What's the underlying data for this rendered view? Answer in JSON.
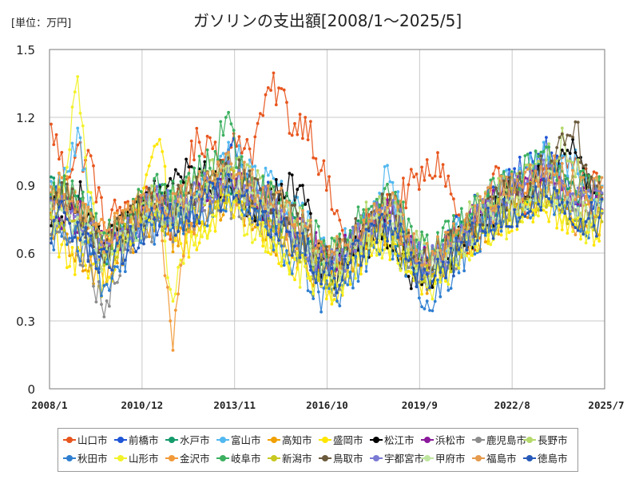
{
  "chart_data": {
    "type": "line",
    "title": "ガソリンの支出額[2008/1～2025/5]",
    "unit_label": "[単位：万円]",
    "xlabel": "",
    "ylabel": "",
    "ylim": [
      0,
      1.5
    ],
    "y_ticks": [
      "0",
      "0.3",
      "0.6",
      "0.9",
      "1.2",
      "1.5"
    ],
    "x_ticks": [
      "2008/1",
      "2010/12",
      "2013/11",
      "2016/10",
      "2019/9",
      "2022/8",
      "2025/7"
    ],
    "grid": true,
    "legend_position": "bottom",
    "series": [
      {
        "name": "山口市",
        "color": "#e8561e",
        "anchors": [
          1.17,
          0.95,
          1.05,
          1.0,
          0.7,
          0.8,
          0.75,
          0.88,
          0.8,
          0.72,
          0.95,
          1.1,
          1.1,
          0.98,
          1.12,
          1.05,
          1.3,
          1.33,
          1.15,
          1.2,
          1.0,
          0.8,
          0.65,
          0.6,
          0.75,
          0.8,
          0.85,
          0.9,
          0.95,
          1.0,
          0.82,
          0.6,
          0.65,
          0.9,
          0.92,
          0.85,
          0.82,
          0.95,
          0.98,
          1.0,
          0.92,
          0.9
        ]
      },
      {
        "name": "前橋市",
        "color": "#1f55d6",
        "anchors": [
          0.8,
          0.85,
          0.7,
          0.6,
          0.62,
          0.7,
          0.75,
          0.8,
          0.85,
          0.78,
          0.8,
          0.82,
          0.88,
          1.0,
          1.05,
          0.95,
          0.85,
          0.8,
          0.7,
          0.6,
          0.55,
          0.5,
          0.6,
          0.7,
          0.78,
          0.8,
          0.72,
          0.6,
          0.55,
          0.62,
          0.7,
          0.75,
          0.8,
          0.85,
          0.9,
          0.95,
          1.0,
          1.05,
          0.9,
          0.8,
          0.85,
          0.82
        ]
      },
      {
        "name": "水戸市",
        "color": "#159b6b",
        "anchors": [
          0.88,
          0.92,
          0.8,
          0.7,
          0.6,
          0.65,
          0.72,
          0.78,
          0.82,
          0.8,
          0.76,
          0.85,
          0.9,
          0.95,
          0.92,
          0.85,
          0.8,
          0.78,
          0.72,
          0.65,
          0.58,
          0.55,
          0.6,
          0.68,
          0.72,
          0.75,
          0.7,
          0.62,
          0.55,
          0.58,
          0.64,
          0.7,
          0.76,
          0.8,
          0.85,
          0.88,
          0.92,
          0.95,
          0.9,
          0.85,
          0.88,
          0.9
        ]
      },
      {
        "name": "富山市",
        "color": "#52b8f0",
        "anchors": [
          0.85,
          0.95,
          1.1,
          0.8,
          0.6,
          0.68,
          0.74,
          0.8,
          0.84,
          0.78,
          0.82,
          0.86,
          0.95,
          1.05,
          1.0,
          0.92,
          0.95,
          0.9,
          0.8,
          0.72,
          0.62,
          0.58,
          0.64,
          0.72,
          0.85,
          0.92,
          0.8,
          0.65,
          0.56,
          0.6,
          0.68,
          0.74,
          0.8,
          0.86,
          0.9,
          0.95,
          1.0,
          1.02,
          0.98,
          1.05,
          0.9,
          0.88
        ]
      },
      {
        "name": "高知市",
        "color": "#f0a000",
        "anchors": [
          0.7,
          0.65,
          0.6,
          0.55,
          0.5,
          0.6,
          0.66,
          0.72,
          0.7,
          0.68,
          0.72,
          0.75,
          0.78,
          0.82,
          0.8,
          0.76,
          0.7,
          0.66,
          0.6,
          0.55,
          0.5,
          0.48,
          0.52,
          0.6,
          0.66,
          0.68,
          0.64,
          0.55,
          0.5,
          0.54,
          0.6,
          0.66,
          0.7,
          0.74,
          0.78,
          0.8,
          0.84,
          0.86,
          0.8,
          0.75,
          0.72,
          0.74
        ]
      },
      {
        "name": "盛岡市",
        "color": "#ffe600",
        "anchors": [
          0.75,
          0.6,
          0.55,
          0.5,
          0.48,
          0.6,
          0.7,
          0.9,
          1.1,
          0.7,
          0.6,
          0.66,
          0.72,
          0.78,
          0.8,
          0.74,
          0.68,
          0.62,
          0.56,
          0.5,
          0.46,
          0.44,
          0.5,
          0.58,
          0.64,
          0.66,
          0.6,
          0.52,
          0.48,
          0.52,
          0.58,
          0.64,
          0.68,
          0.72,
          0.76,
          0.78,
          0.8,
          0.82,
          0.76,
          0.72,
          0.7,
          0.72
        ]
      },
      {
        "name": "松江市",
        "color": "#000000",
        "anchors": [
          0.78,
          0.8,
          0.86,
          0.75,
          0.62,
          0.68,
          0.74,
          0.8,
          0.86,
          0.9,
          0.94,
          0.96,
          0.92,
          0.88,
          0.84,
          0.8,
          0.82,
          0.86,
          0.88,
          0.8,
          0.55,
          0.5,
          0.55,
          0.62,
          0.66,
          0.7,
          0.6,
          0.5,
          0.5,
          0.56,
          0.62,
          0.68,
          0.74,
          0.8,
          0.86,
          0.88,
          0.9,
          0.95,
          1.0,
          1.05,
          0.88,
          0.85
        ]
      },
      {
        "name": "浜松市",
        "color": "#8a1a9b",
        "anchors": [
          0.8,
          0.78,
          0.76,
          0.7,
          0.62,
          0.68,
          0.74,
          0.78,
          0.8,
          0.78,
          0.82,
          0.86,
          0.88,
          0.9,
          0.88,
          0.84,
          0.8,
          0.76,
          0.72,
          0.66,
          0.6,
          0.56,
          0.62,
          0.7,
          0.76,
          0.8,
          0.74,
          0.62,
          0.56,
          0.6,
          0.66,
          0.72,
          0.78,
          0.82,
          0.86,
          0.88,
          0.9,
          0.92,
          0.88,
          0.84,
          0.82,
          0.84
        ]
      },
      {
        "name": "鹿児島市",
        "color": "#8c8c8c",
        "anchors": [
          0.72,
          0.7,
          0.65,
          0.5,
          0.38,
          0.55,
          0.64,
          0.7,
          0.74,
          0.72,
          0.74,
          0.78,
          0.8,
          0.84,
          0.82,
          0.78,
          0.74,
          0.7,
          0.64,
          0.58,
          0.52,
          0.48,
          0.54,
          0.62,
          0.68,
          0.7,
          0.66,
          0.56,
          0.5,
          0.54,
          0.6,
          0.66,
          0.72,
          0.76,
          0.8,
          0.82,
          0.86,
          0.88,
          0.84,
          0.8,
          0.78,
          0.8
        ]
      },
      {
        "name": "長野市",
        "color": "#b5d96b",
        "anchors": [
          0.82,
          0.86,
          0.8,
          0.72,
          0.64,
          0.7,
          0.76,
          0.82,
          0.86,
          0.84,
          0.86,
          0.9,
          0.94,
          0.98,
          0.95,
          0.9,
          0.86,
          0.82,
          0.76,
          0.7,
          0.62,
          0.58,
          0.64,
          0.72,
          0.78,
          0.82,
          0.76,
          0.64,
          0.58,
          0.62,
          0.68,
          0.74,
          0.8,
          0.84,
          0.88,
          0.92,
          0.96,
          1.0,
          1.1,
          0.95,
          0.88,
          0.86
        ]
      },
      {
        "name": "秋田市",
        "color": "#2f7fd1",
        "anchors": [
          0.68,
          0.72,
          0.65,
          0.55,
          0.45,
          0.55,
          0.62,
          0.68,
          0.72,
          0.7,
          0.72,
          0.76,
          0.8,
          0.84,
          0.82,
          0.76,
          0.7,
          0.64,
          0.58,
          0.5,
          0.42,
          0.38,
          0.46,
          0.56,
          0.62,
          0.66,
          0.6,
          0.48,
          0.36,
          0.44,
          0.54,
          0.62,
          0.68,
          0.72,
          0.76,
          0.8,
          0.84,
          0.86,
          0.8,
          0.76,
          0.74,
          0.76
        ]
      },
      {
        "name": "山形市",
        "color": "#f2f22a",
        "anchors": [
          0.76,
          0.9,
          1.38,
          0.8,
          0.6,
          0.66,
          0.72,
          0.78,
          0.8,
          0.4,
          0.62,
          0.7,
          0.76,
          0.8,
          0.78,
          0.72,
          0.66,
          0.62,
          0.56,
          0.5,
          0.46,
          0.44,
          0.5,
          0.58,
          0.64,
          0.66,
          0.6,
          0.52,
          0.46,
          0.5,
          0.56,
          0.62,
          0.66,
          0.7,
          0.74,
          0.76,
          0.8,
          0.82,
          0.78,
          0.74,
          0.72,
          0.74
        ]
      },
      {
        "name": "金沢市",
        "color": "#f29a3a",
        "anchors": [
          0.86,
          0.9,
          0.82,
          0.74,
          0.66,
          0.72,
          0.78,
          0.84,
          0.88,
          0.17,
          0.7,
          0.8,
          0.86,
          0.9,
          0.88,
          0.84,
          0.8,
          0.76,
          0.7,
          0.64,
          0.58,
          0.54,
          0.6,
          0.68,
          0.74,
          0.78,
          0.72,
          0.6,
          0.54,
          0.58,
          0.64,
          0.7,
          0.76,
          0.8,
          0.84,
          0.86,
          0.9,
          0.92,
          0.86,
          0.7,
          0.8,
          0.82
        ]
      },
      {
        "name": "岐阜市",
        "color": "#3cb060",
        "anchors": [
          0.84,
          0.88,
          0.82,
          0.74,
          0.66,
          0.72,
          0.78,
          0.84,
          0.88,
          0.86,
          0.9,
          0.96,
          1.0,
          1.2,
          1.0,
          0.92,
          0.88,
          0.84,
          0.78,
          0.72,
          0.64,
          0.6,
          0.66,
          0.74,
          0.8,
          0.84,
          0.78,
          0.66,
          0.6,
          0.64,
          0.7,
          0.76,
          0.82,
          0.86,
          0.9,
          0.94,
          0.98,
          1.0,
          0.95,
          0.9,
          0.88,
          0.9
        ]
      },
      {
        "name": "新潟市",
        "color": "#c8c820",
        "anchors": [
          0.74,
          0.78,
          0.72,
          0.64,
          0.56,
          0.62,
          0.68,
          0.74,
          0.78,
          0.76,
          0.78,
          0.82,
          0.86,
          0.9,
          0.88,
          0.82,
          0.76,
          0.72,
          0.66,
          0.6,
          0.54,
          0.5,
          0.56,
          0.64,
          0.7,
          0.74,
          0.68,
          0.56,
          0.5,
          0.54,
          0.6,
          0.66,
          0.72,
          0.76,
          0.8,
          0.82,
          0.86,
          0.88,
          0.82,
          0.78,
          0.76,
          0.78
        ]
      },
      {
        "name": "鳥取市",
        "color": "#6b5a3c",
        "anchors": [
          0.8,
          0.84,
          0.78,
          0.7,
          0.62,
          0.68,
          0.74,
          0.8,
          0.84,
          0.82,
          0.84,
          0.88,
          0.92,
          0.96,
          0.94,
          0.88,
          0.84,
          0.8,
          0.74,
          0.68,
          0.6,
          0.56,
          0.62,
          0.7,
          0.76,
          0.8,
          0.74,
          0.62,
          0.56,
          0.6,
          0.66,
          0.72,
          0.78,
          0.82,
          0.86,
          0.9,
          0.94,
          0.98,
          1.05,
          1.18,
          0.9,
          0.88
        ]
      },
      {
        "name": "宇都宮市",
        "color": "#7b7bd4",
        "anchors": [
          0.78,
          0.82,
          0.76,
          0.68,
          0.6,
          0.66,
          0.72,
          0.78,
          0.82,
          0.8,
          0.82,
          0.86,
          0.9,
          0.94,
          0.92,
          0.86,
          0.82,
          0.78,
          0.72,
          0.66,
          0.58,
          0.54,
          0.6,
          0.68,
          0.74,
          0.78,
          0.72,
          0.6,
          0.54,
          0.58,
          0.64,
          0.7,
          0.76,
          0.8,
          0.84,
          0.88,
          0.92,
          0.96,
          0.9,
          0.86,
          0.84,
          0.86
        ]
      },
      {
        "name": "甲府市",
        "color": "#bfe6a0",
        "anchors": [
          0.76,
          0.8,
          0.74,
          0.66,
          0.58,
          0.64,
          0.7,
          0.76,
          0.8,
          0.78,
          0.8,
          0.84,
          0.88,
          0.92,
          0.9,
          0.84,
          0.8,
          0.76,
          0.7,
          0.64,
          0.56,
          0.52,
          0.58,
          0.66,
          0.72,
          0.76,
          0.7,
          0.58,
          0.52,
          0.56,
          0.62,
          0.68,
          0.74,
          0.78,
          0.82,
          0.84,
          0.88,
          0.9,
          0.84,
          0.8,
          0.78,
          0.8
        ]
      },
      {
        "name": "福島市",
        "color": "#e59a4d",
        "anchors": [
          0.82,
          0.86,
          0.8,
          0.72,
          0.64,
          0.7,
          0.76,
          0.82,
          0.86,
          0.84,
          0.86,
          0.9,
          0.94,
          0.98,
          0.96,
          0.9,
          0.86,
          0.82,
          0.76,
          0.7,
          0.62,
          0.58,
          0.64,
          0.72,
          0.78,
          0.82,
          0.76,
          0.64,
          0.58,
          0.62,
          0.68,
          0.74,
          0.8,
          0.84,
          0.88,
          0.92,
          0.96,
          0.98,
          0.92,
          0.88,
          0.86,
          0.88
        ]
      },
      {
        "name": "徳島市",
        "color": "#2659b8",
        "anchors": [
          0.72,
          0.76,
          0.7,
          0.62,
          0.54,
          0.6,
          0.66,
          0.72,
          0.76,
          0.74,
          0.76,
          0.8,
          0.84,
          0.88,
          0.86,
          0.8,
          0.76,
          0.72,
          0.66,
          0.6,
          0.52,
          0.48,
          0.54,
          0.62,
          0.68,
          0.72,
          0.66,
          0.54,
          0.48,
          0.52,
          0.58,
          0.64,
          0.7,
          0.74,
          0.78,
          0.8,
          0.84,
          0.86,
          0.8,
          0.76,
          0.74,
          0.76
        ]
      }
    ]
  }
}
